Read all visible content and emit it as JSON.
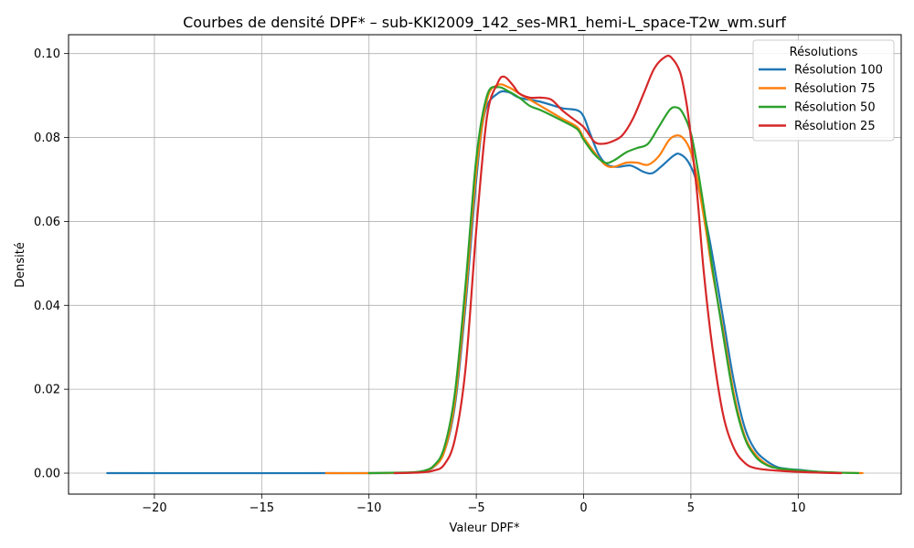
{
  "chart_data": {
    "type": "line",
    "title": "Courbes de densité DPF* – sub-KKI2009_142_ses-MR1_hemi-L_space-T2w_wm.surf",
    "xlabel": "Valeur DPF*",
    "ylabel": "Densité",
    "xlim": [
      -24,
      14.8
    ],
    "ylim": [
      -0.005,
      0.1045
    ],
    "x_ticks": [
      -20,
      -15,
      -10,
      -5,
      0,
      5,
      10
    ],
    "x_tick_labels": [
      "−20",
      "−15",
      "−10",
      "−5",
      "0",
      "5",
      "10"
    ],
    "y_ticks": [
      0.0,
      0.02,
      0.04,
      0.06,
      0.08,
      0.1
    ],
    "y_tick_labels": [
      "0.00",
      "0.02",
      "0.04",
      "0.06",
      "0.08",
      "0.10"
    ],
    "grid": true,
    "legend": {
      "title": "Résolutions",
      "position": "top-right"
    },
    "series": [
      {
        "name": "Résolution 100",
        "color": "#1f77b4",
        "points": [
          [
            -22.2,
            0
          ],
          [
            -10,
            0
          ],
          [
            -8,
            0.0001
          ],
          [
            -7.5,
            0.0004
          ],
          [
            -7,
            0.0014
          ],
          [
            -6.5,
            0.005
          ],
          [
            -6,
            0.016
          ],
          [
            -5.5,
            0.04
          ],
          [
            -5,
            0.07
          ],
          [
            -4.6,
            0.086
          ],
          [
            -4,
            0.0905
          ],
          [
            -3.5,
            0.0908
          ],
          [
            -3,
            0.0895
          ],
          [
            -2,
            0.0885
          ],
          [
            -1,
            0.087
          ],
          [
            -0.3,
            0.0865
          ],
          [
            0,
            0.085
          ],
          [
            0.3,
            0.081
          ],
          [
            0.7,
            0.076
          ],
          [
            1.1,
            0.0735
          ],
          [
            1.6,
            0.073
          ],
          [
            2.2,
            0.0733
          ],
          [
            2.8,
            0.0718
          ],
          [
            3.2,
            0.0715
          ],
          [
            3.6,
            0.073
          ],
          [
            4.2,
            0.0757
          ],
          [
            4.5,
            0.076
          ],
          [
            4.9,
            0.074
          ],
          [
            5.3,
            0.069
          ],
          [
            5.7,
            0.06
          ],
          [
            6,
            0.052
          ],
          [
            6.5,
            0.037
          ],
          [
            7,
            0.022
          ],
          [
            7.5,
            0.011
          ],
          [
            8,
            0.0055
          ],
          [
            8.5,
            0.003
          ],
          [
            9,
            0.0015
          ],
          [
            9.5,
            0.001
          ],
          [
            10,
            0.0008
          ],
          [
            11,
            0.0003
          ],
          [
            12,
            0
          ]
        ]
      },
      {
        "name": "Résolution 75",
        "color": "#ff7f0e",
        "points": [
          [
            -12,
            0
          ],
          [
            -10,
            0
          ],
          [
            -8,
            0.0001
          ],
          [
            -7.5,
            0.0004
          ],
          [
            -7,
            0.0015
          ],
          [
            -6.5,
            0.005
          ],
          [
            -6,
            0.017
          ],
          [
            -5.5,
            0.042
          ],
          [
            -5,
            0.072
          ],
          [
            -4.5,
            0.089
          ],
          [
            -4,
            0.0925
          ],
          [
            -3.5,
            0.092
          ],
          [
            -3,
            0.0905
          ],
          [
            -2,
            0.0875
          ],
          [
            -1,
            0.0845
          ],
          [
            -0.3,
            0.0825
          ],
          [
            0,
            0.08
          ],
          [
            0.5,
            0.0765
          ],
          [
            1,
            0.0735
          ],
          [
            1.4,
            0.073
          ],
          [
            2,
            0.074
          ],
          [
            2.5,
            0.074
          ],
          [
            3,
            0.0735
          ],
          [
            3.5,
            0.0755
          ],
          [
            4,
            0.0795
          ],
          [
            4.4,
            0.0805
          ],
          [
            4.7,
            0.0795
          ],
          [
            5,
            0.0765
          ],
          [
            5.3,
            0.07
          ],
          [
            5.7,
            0.058
          ],
          [
            6,
            0.048
          ],
          [
            6.5,
            0.034
          ],
          [
            7,
            0.019
          ],
          [
            7.5,
            0.009
          ],
          [
            8,
            0.0045
          ],
          [
            8.5,
            0.0022
          ],
          [
            9,
            0.0012
          ],
          [
            9.5,
            0.0008
          ],
          [
            10,
            0.0006
          ],
          [
            11,
            0.0002
          ],
          [
            12,
            0.0001
          ],
          [
            13,
            0
          ]
        ]
      },
      {
        "name": "Résolution 50",
        "color": "#2ca02c",
        "points": [
          [
            -10,
            0
          ],
          [
            -9,
            0.0001
          ],
          [
            -8,
            0.0002
          ],
          [
            -7.5,
            0.0005
          ],
          [
            -7,
            0.0017
          ],
          [
            -6.5,
            0.006
          ],
          [
            -6,
            0.019
          ],
          [
            -5.5,
            0.045
          ],
          [
            -5,
            0.075
          ],
          [
            -4.5,
            0.09
          ],
          [
            -4,
            0.092
          ],
          [
            -3.5,
            0.091
          ],
          [
            -3,
            0.0895
          ],
          [
            -2.5,
            0.0875
          ],
          [
            -2,
            0.0865
          ],
          [
            -1,
            0.084
          ],
          [
            -0.3,
            0.082
          ],
          [
            0,
            0.0795
          ],
          [
            0.5,
            0.076
          ],
          [
            1,
            0.074
          ],
          [
            1.4,
            0.0745
          ],
          [
            2,
            0.0765
          ],
          [
            2.5,
            0.0775
          ],
          [
            3,
            0.0785
          ],
          [
            3.5,
            0.0825
          ],
          [
            4,
            0.0865
          ],
          [
            4.3,
            0.0872
          ],
          [
            4.6,
            0.086
          ],
          [
            5,
            0.081
          ],
          [
            5.3,
            0.073
          ],
          [
            5.7,
            0.06
          ],
          [
            6,
            0.049
          ],
          [
            6.5,
            0.033
          ],
          [
            7,
            0.018
          ],
          [
            7.5,
            0.0085
          ],
          [
            8,
            0.004
          ],
          [
            8.5,
            0.002
          ],
          [
            9,
            0.0012
          ],
          [
            10,
            0.0007
          ],
          [
            11,
            0.0003
          ],
          [
            12,
            0.0001
          ],
          [
            12.8,
            0
          ]
        ]
      },
      {
        "name": "Résolution 25",
        "color": "#d62728",
        "points": [
          [
            -8.8,
            0
          ],
          [
            -8,
            0.0001
          ],
          [
            -7.5,
            0.0002
          ],
          [
            -7,
            0.0006
          ],
          [
            -6.5,
            0.002
          ],
          [
            -6,
            0.008
          ],
          [
            -5.5,
            0.025
          ],
          [
            -5,
            0.058
          ],
          [
            -4.5,
            0.085
          ],
          [
            -4,
            0.093
          ],
          [
            -3.7,
            0.0945
          ],
          [
            -3.3,
            0.0925
          ],
          [
            -3,
            0.0905
          ],
          [
            -2.5,
            0.0895
          ],
          [
            -2,
            0.0895
          ],
          [
            -1.5,
            0.089
          ],
          [
            -1,
            0.0865
          ],
          [
            -0.5,
            0.0845
          ],
          [
            0,
            0.0825
          ],
          [
            0.5,
            0.079
          ],
          [
            0.9,
            0.0785
          ],
          [
            1.3,
            0.079
          ],
          [
            1.8,
            0.0805
          ],
          [
            2.3,
            0.0845
          ],
          [
            2.8,
            0.0905
          ],
          [
            3.3,
            0.0965
          ],
          [
            3.8,
            0.0992
          ],
          [
            4.1,
            0.099
          ],
          [
            4.5,
            0.0955
          ],
          [
            4.8,
            0.088
          ],
          [
            5,
            0.08
          ],
          [
            5.3,
            0.066
          ],
          [
            5.6,
            0.048
          ],
          [
            6,
            0.03
          ],
          [
            6.5,
            0.014
          ],
          [
            7,
            0.006
          ],
          [
            7.5,
            0.0025
          ],
          [
            8,
            0.0012
          ],
          [
            9,
            0.0006
          ],
          [
            10,
            0.0003
          ],
          [
            11,
            0.0001
          ],
          [
            12,
            0
          ]
        ]
      }
    ]
  }
}
